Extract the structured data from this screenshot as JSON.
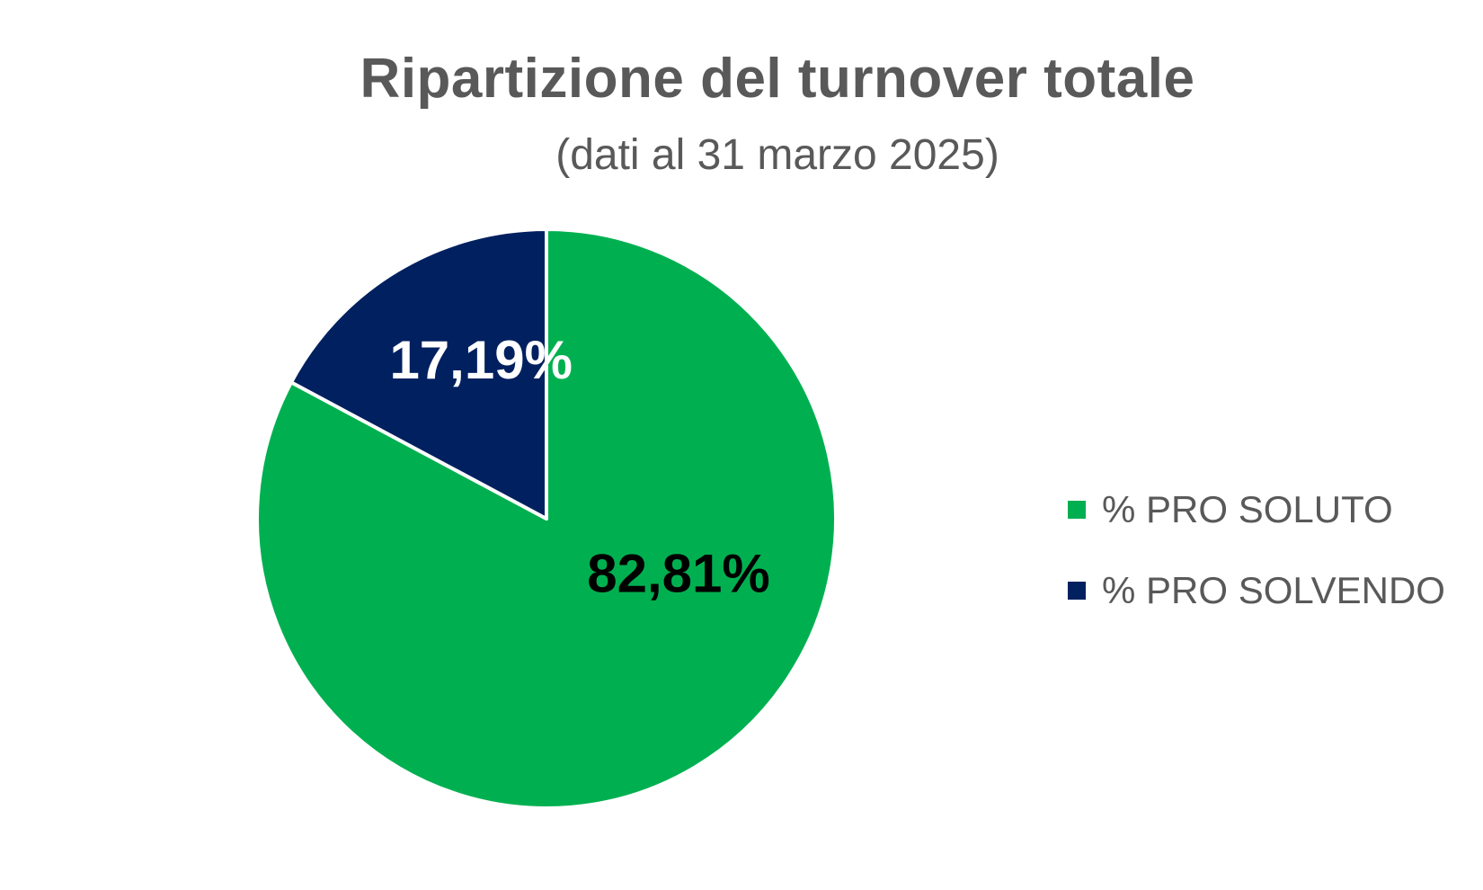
{
  "chart_data": {
    "type": "pie",
    "title": "Ripartizione del turnover totale",
    "subtitle": "(dati al 31 marzo 2025)",
    "legend_position": "right",
    "slices": [
      {
        "name": "% PRO SOLUTO",
        "value": 82.81,
        "label": "82,81%",
        "color": "#00b050",
        "label_color": "#000000"
      },
      {
        "name": "% PRO SOLVENDO",
        "value": 17.19,
        "label": "17,19%",
        "color": "#002060",
        "label_color": "#ffffff"
      }
    ]
  }
}
